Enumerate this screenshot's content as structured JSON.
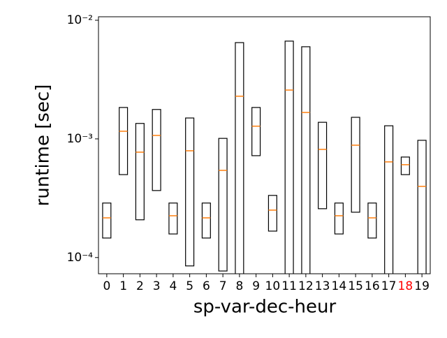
{
  "chart_data": {
    "type": "box",
    "xlabel": "sp-var-dec-heur",
    "ylabel": "runtime [sec]",
    "categories": [
      "0",
      "1",
      "2",
      "3",
      "4",
      "5",
      "6",
      "7",
      "8",
      "9",
      "10",
      "11",
      "12",
      "13",
      "14",
      "15",
      "16",
      "17",
      "18",
      "19"
    ],
    "q1": [
      0.000146,
      0.0005,
      0.000208,
      0.000367,
      0.000158,
      8.5e-05,
      0.000146,
      7.7e-05,
      5e-05,
      0.000722,
      0.000167,
      5e-05,
      5e-05,
      0.000258,
      0.000158,
      0.000241,
      0.000146,
      5e-05,
      0.0005,
      5e-05
    ],
    "median": [
      0.000216,
      0.00116,
      0.000773,
      0.00107,
      0.000225,
      0.000794,
      0.000216,
      0.000543,
      0.00229,
      0.00128,
      0.000251,
      0.00258,
      0.00167,
      0.000816,
      0.000225,
      0.000885,
      0.000216,
      0.00064,
      0.000606,
      0.000398
    ],
    "q3": [
      0.000288,
      0.00184,
      0.00135,
      0.00177,
      0.000288,
      0.0015,
      0.000288,
      0.00101,
      0.00648,
      0.00184,
      0.000334,
      0.00667,
      0.00598,
      0.00138,
      0.000288,
      0.00152,
      0.000288,
      0.00129,
      0.000703,
      0.000973
    ],
    "box_color": "#000000",
    "median_color": "#ff7f0e",
    "highlighted_categories": [
      "18"
    ],
    "highlight_color": "red",
    "log_y": true,
    "ylim": [
      7.3e-05,
      0.0107
    ],
    "yticks": [
      {
        "value": 0.0001,
        "label": "10⁻⁴"
      },
      {
        "value": 0.001,
        "label": "10⁻³"
      },
      {
        "value": 0.01,
        "label": "10⁻²"
      }
    ]
  }
}
